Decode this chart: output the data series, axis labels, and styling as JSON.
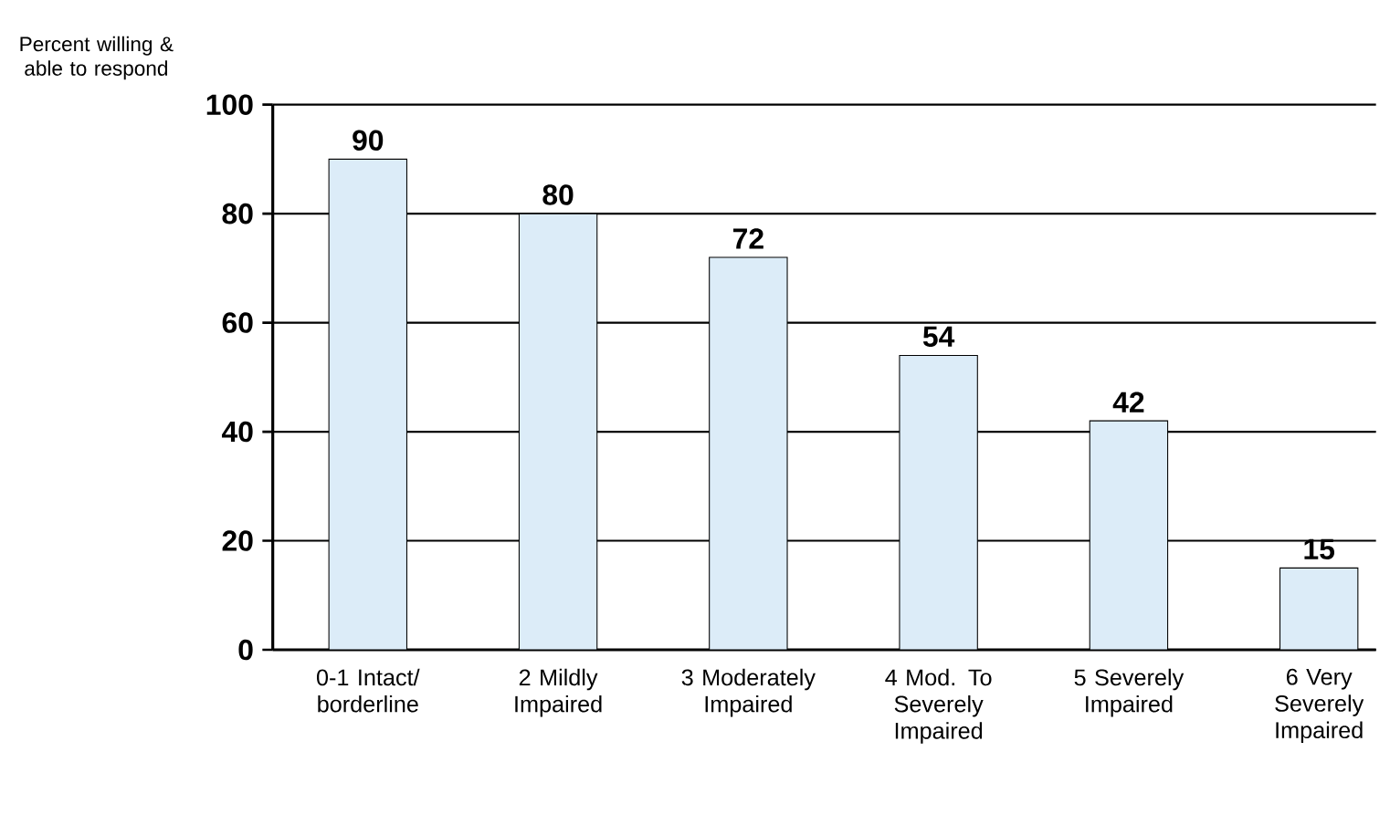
{
  "chart_data": {
    "type": "bar",
    "ylabel": "Percent willing & able to respond",
    "categories": [
      "0-1 Intact/ borderline",
      "2 Mildly Impaired",
      "3 Moderately Impaired",
      "4 Mod. To Severely Impaired",
      "5 Severely Impaired",
      "6 Very Severely Impaired"
    ],
    "values": [
      90,
      80,
      72,
      54,
      42,
      15
    ],
    "color": "#dcecf8",
    "ylim": [
      0,
      100
    ],
    "yticks": [
      0,
      20,
      40,
      60,
      80,
      100
    ],
    "grid": "y",
    "data_labels": true
  }
}
